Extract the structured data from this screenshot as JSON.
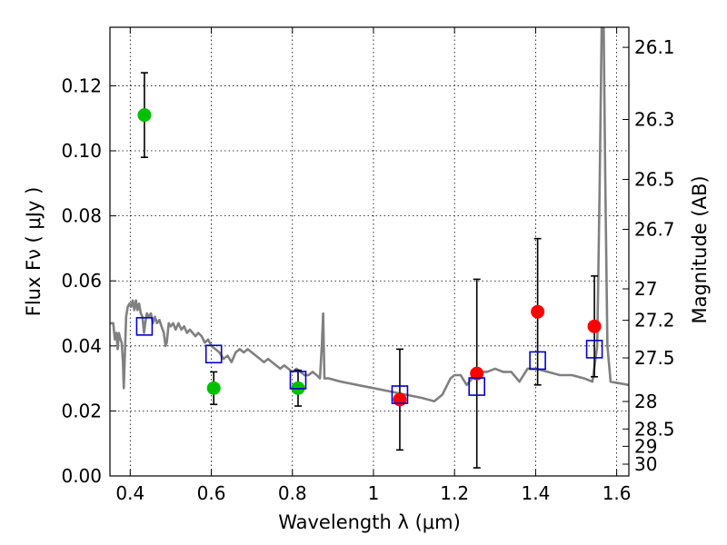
{
  "chart_data": {
    "type": "scatter",
    "xlabel": "Wavelength  λ (μm)",
    "ylabel": "Flux  Fν  ( μJy )",
    "ylabel_right": "Magnitude (AB)",
    "xlim": [
      0.35,
      1.63
    ],
    "ylim": [
      0.0,
      0.138
    ],
    "grid": true,
    "x_ticks": [
      {
        "value": 0.4,
        "label": "0.4"
      },
      {
        "value": 0.6,
        "label": "0.6"
      },
      {
        "value": 0.8,
        "label": "0.8"
      },
      {
        "value": 1.0,
        "label": "1"
      },
      {
        "value": 1.2,
        "label": "1.2"
      },
      {
        "value": 1.4,
        "label": "1.4"
      },
      {
        "value": 1.6,
        "label": "1.6"
      }
    ],
    "y_ticks": [
      {
        "value": 0.0,
        "label": "0.00"
      },
      {
        "value": 0.02,
        "label": "0.02"
      },
      {
        "value": 0.04,
        "label": "0.04"
      },
      {
        "value": 0.06,
        "label": "0.06"
      },
      {
        "value": 0.08,
        "label": "0.08"
      },
      {
        "value": 0.1,
        "label": "0.10"
      },
      {
        "value": 0.12,
        "label": "0.12"
      }
    ],
    "mag_ticks": [
      {
        "value": 26.1,
        "label": "26.1"
      },
      {
        "value": 26.3,
        "label": "26.3"
      },
      {
        "value": 26.5,
        "label": "26.5"
      },
      {
        "value": 26.7,
        "label": "26.7"
      },
      {
        "value": 27.0,
        "label": "27"
      },
      {
        "value": 27.2,
        "label": "27.2"
      },
      {
        "value": 27.5,
        "label": "27.5"
      },
      {
        "value": 28.0,
        "label": "28"
      },
      {
        "value": 28.5,
        "label": "28.5"
      },
      {
        "value": 29.0,
        "label": "29"
      },
      {
        "value": 30.0,
        "label": "30"
      }
    ],
    "sed_model": {
      "color": "#808080",
      "points": [
        [
          0.35,
          0.047
        ],
        [
          0.358,
          0.047
        ],
        [
          0.362,
          0.042
        ],
        [
          0.366,
          0.044
        ],
        [
          0.369,
          0.039
        ],
        [
          0.372,
          0.044
        ],
        [
          0.376,
          0.042
        ],
        [
          0.379,
          0.041
        ],
        [
          0.382,
          0.035
        ],
        [
          0.384,
          0.027
        ],
        [
          0.387,
          0.038
        ],
        [
          0.39,
          0.049
        ],
        [
          0.394,
          0.052
        ],
        [
          0.398,
          0.053
        ],
        [
          0.402,
          0.052
        ],
        [
          0.406,
          0.054
        ],
        [
          0.41,
          0.051
        ],
        [
          0.414,
          0.054
        ],
        [
          0.418,
          0.051
        ],
        [
          0.422,
          0.053
        ],
        [
          0.426,
          0.05
        ],
        [
          0.43,
          0.049
        ],
        [
          0.434,
          0.044
        ],
        [
          0.437,
          0.047
        ],
        [
          0.441,
          0.05
        ],
        [
          0.446,
          0.049
        ],
        [
          0.451,
          0.05
        ],
        [
          0.456,
          0.047
        ],
        [
          0.461,
          0.049
        ],
        [
          0.466,
          0.047
        ],
        [
          0.472,
          0.048
        ],
        [
          0.477,
          0.046
        ],
        [
          0.483,
          0.044
        ],
        [
          0.487,
          0.04
        ],
        [
          0.49,
          0.041
        ],
        [
          0.495,
          0.047
        ],
        [
          0.5,
          0.046
        ],
        [
          0.506,
          0.047
        ],
        [
          0.512,
          0.045
        ],
        [
          0.519,
          0.047
        ],
        [
          0.526,
          0.045
        ],
        [
          0.533,
          0.046
        ],
        [
          0.54,
          0.044
        ],
        [
          0.547,
          0.045
        ],
        [
          0.554,
          0.044
        ],
        [
          0.561,
          0.043
        ],
        [
          0.568,
          0.044
        ],
        [
          0.576,
          0.043
        ],
        [
          0.584,
          0.041
        ],
        [
          0.592,
          0.042
        ],
        [
          0.6,
          0.04
        ],
        [
          0.61,
          0.039
        ],
        [
          0.62,
          0.038
        ],
        [
          0.63,
          0.036
        ],
        [
          0.64,
          0.037
        ],
        [
          0.65,
          0.035
        ],
        [
          0.66,
          0.038
        ],
        [
          0.67,
          0.039
        ],
        [
          0.68,
          0.038
        ],
        [
          0.69,
          0.039
        ],
        [
          0.7,
          0.038
        ],
        [
          0.71,
          0.037
        ],
        [
          0.72,
          0.036
        ],
        [
          0.73,
          0.035
        ],
        [
          0.74,
          0.036
        ],
        [
          0.75,
          0.035
        ],
        [
          0.76,
          0.034
        ],
        [
          0.77,
          0.033
        ],
        [
          0.78,
          0.034
        ],
        [
          0.79,
          0.033
        ],
        [
          0.8,
          0.032
        ],
        [
          0.81,
          0.033
        ],
        [
          0.82,
          0.032
        ],
        [
          0.83,
          0.031
        ],
        [
          0.84,
          0.031
        ],
        [
          0.85,
          0.032
        ],
        [
          0.86,
          0.031
        ],
        [
          0.868,
          0.03
        ],
        [
          0.873,
          0.041
        ],
        [
          0.876,
          0.05
        ],
        [
          0.879,
          0.03
        ],
        [
          0.89,
          0.03
        ],
        [
          0.92,
          0.029
        ],
        [
          0.96,
          0.028
        ],
        [
          1.0,
          0.027
        ],
        [
          1.04,
          0.026
        ],
        [
          1.08,
          0.025
        ],
        [
          1.12,
          0.024
        ],
        [
          1.15,
          0.023
        ],
        [
          1.17,
          0.025
        ],
        [
          1.19,
          0.03
        ],
        [
          1.2,
          0.031
        ],
        [
          1.215,
          0.031
        ],
        [
          1.23,
          0.028
        ],
        [
          1.25,
          0.031
        ],
        [
          1.265,
          0.032
        ],
        [
          1.28,
          0.032
        ],
        [
          1.3,
          0.033
        ],
        [
          1.32,
          0.032
        ],
        [
          1.34,
          0.032
        ],
        [
          1.36,
          0.029
        ],
        [
          1.38,
          0.033
        ],
        [
          1.4,
          0.033
        ],
        [
          1.43,
          0.032
        ],
        [
          1.46,
          0.031
        ],
        [
          1.49,
          0.031
        ],
        [
          1.52,
          0.03
        ],
        [
          1.54,
          0.029
        ],
        [
          1.552,
          0.04
        ],
        [
          1.558,
          0.09
        ],
        [
          1.563,
          0.138
        ],
        [
          1.568,
          0.138
        ],
        [
          1.572,
          0.09
        ],
        [
          1.577,
          0.04
        ],
        [
          1.585,
          0.029
        ],
        [
          1.63,
          0.028
        ]
      ]
    },
    "series": [
      {
        "marker": "circle",
        "color": "#00c000",
        "points": [
          {
            "x": 0.435,
            "y": 0.111,
            "err": 0.013
          },
          {
            "x": 0.606,
            "y": 0.027,
            "err": 0.005
          },
          {
            "x": 0.814,
            "y": 0.027,
            "err": 0.0055
          }
        ]
      },
      {
        "marker": "circle",
        "color": "#ff0000",
        "points": [
          {
            "x": 1.065,
            "y": 0.0235,
            "err": 0.0155
          },
          {
            "x": 1.255,
            "y": 0.0315,
            "err": 0.029
          },
          {
            "x": 1.405,
            "y": 0.0505,
            "err": 0.0225
          },
          {
            "x": 1.545,
            "y": 0.046,
            "err": 0.0155
          }
        ]
      },
      {
        "marker": "square-open",
        "color": "#0000cc",
        "points": [
          {
            "x": 0.435,
            "y": 0.046
          },
          {
            "x": 0.606,
            "y": 0.0375
          },
          {
            "x": 0.814,
            "y": 0.0295
          },
          {
            "x": 1.065,
            "y": 0.025
          },
          {
            "x": 1.255,
            "y": 0.0275
          },
          {
            "x": 1.405,
            "y": 0.0355
          },
          {
            "x": 1.545,
            "y": 0.039
          }
        ]
      }
    ]
  }
}
